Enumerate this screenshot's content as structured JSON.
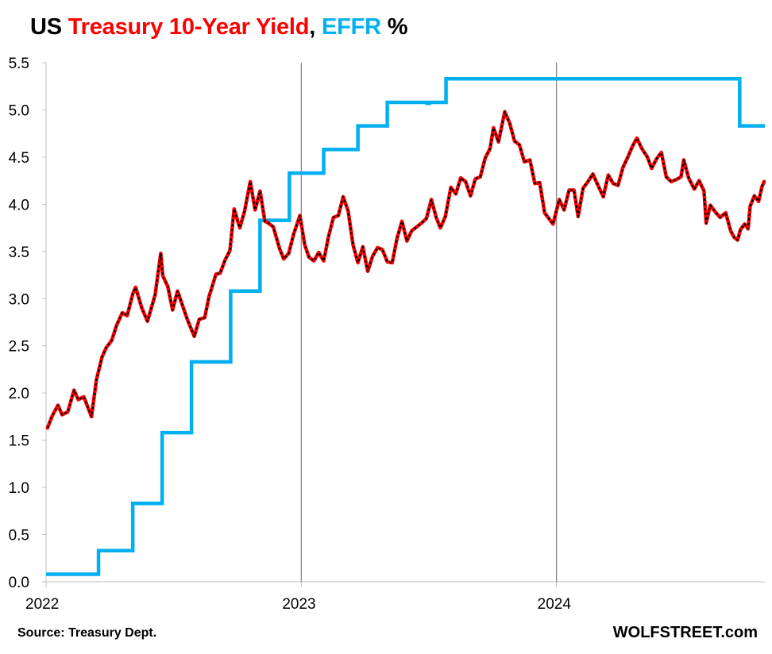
{
  "title": {
    "parts": [
      {
        "text": "US ",
        "color": "#000000"
      },
      {
        "text": "Treasury 10-Year Yield",
        "color": "#ff0000"
      },
      {
        "text": ", ",
        "color": "#000000"
      },
      {
        "text": "EFFR",
        "color": "#00b0f0"
      },
      {
        "text": " %",
        "color": "#000000"
      }
    ]
  },
  "source": "Source: Treasury Dept.",
  "brand": "WOLFSTREET.com",
  "chart_data": {
    "type": "line",
    "ylim": [
      0,
      5.5
    ],
    "yticks": [
      "0.0",
      "0.5",
      "1.0",
      "1.5",
      "2.0",
      "2.5",
      "3.0",
      "3.5",
      "4.0",
      "4.5",
      "5.0",
      "5.5"
    ],
    "xlim": [
      "2022-01-01",
      "2024-10-25"
    ],
    "xticks": [
      {
        "label": "2022",
        "date": "2022-01-01"
      },
      {
        "label": "2023",
        "date": "2023-01-01"
      },
      {
        "label": "2024",
        "date": "2024-01-01"
      }
    ],
    "vertical_lines": [
      "2023-01-01",
      "2024-01-01"
    ],
    "grid": false,
    "series": [
      {
        "name": "Treasury 10-Year Yield",
        "color": "#ff0000",
        "overlay_color": "#000000",
        "style": "line",
        "points": [
          [
            "2022-01-03",
            1.63
          ],
          [
            "2022-01-10",
            1.76
          ],
          [
            "2022-01-18",
            1.87
          ],
          [
            "2022-01-24",
            1.77
          ],
          [
            "2022-02-01",
            1.8
          ],
          [
            "2022-02-10",
            2.03
          ],
          [
            "2022-02-16",
            1.93
          ],
          [
            "2022-02-24",
            1.96
          ],
          [
            "2022-03-07",
            1.75
          ],
          [
            "2022-03-14",
            2.14
          ],
          [
            "2022-03-22",
            2.38
          ],
          [
            "2022-03-28",
            2.48
          ],
          [
            "2022-04-05",
            2.56
          ],
          [
            "2022-04-12",
            2.72
          ],
          [
            "2022-04-20",
            2.85
          ],
          [
            "2022-04-27",
            2.82
          ],
          [
            "2022-05-05",
            3.05
          ],
          [
            "2022-05-09",
            3.12
          ],
          [
            "2022-05-18",
            2.9
          ],
          [
            "2022-05-26",
            2.76
          ],
          [
            "2022-06-06",
            3.04
          ],
          [
            "2022-06-14",
            3.48
          ],
          [
            "2022-06-17",
            3.24
          ],
          [
            "2022-06-24",
            3.13
          ],
          [
            "2022-07-01",
            2.88
          ],
          [
            "2022-07-08",
            3.08
          ],
          [
            "2022-07-15",
            2.93
          ],
          [
            "2022-07-22",
            2.78
          ],
          [
            "2022-08-01",
            2.6
          ],
          [
            "2022-08-08",
            2.78
          ],
          [
            "2022-08-16",
            2.8
          ],
          [
            "2022-08-22",
            3.02
          ],
          [
            "2022-09-01",
            3.26
          ],
          [
            "2022-09-07",
            3.27
          ],
          [
            "2022-09-14",
            3.41
          ],
          [
            "2022-09-21",
            3.51
          ],
          [
            "2022-09-27",
            3.95
          ],
          [
            "2022-10-05",
            3.75
          ],
          [
            "2022-10-12",
            3.93
          ],
          [
            "2022-10-20",
            4.24
          ],
          [
            "2022-10-27",
            3.94
          ],
          [
            "2022-11-03",
            4.14
          ],
          [
            "2022-11-10",
            3.82
          ],
          [
            "2022-11-15",
            3.8
          ],
          [
            "2022-11-22",
            3.76
          ],
          [
            "2022-12-01",
            3.53
          ],
          [
            "2022-12-07",
            3.42
          ],
          [
            "2022-12-14",
            3.48
          ],
          [
            "2022-12-21",
            3.68
          ],
          [
            "2022-12-30",
            3.88
          ],
          [
            "2023-01-06",
            3.57
          ],
          [
            "2023-01-12",
            3.44
          ],
          [
            "2023-01-19",
            3.4
          ],
          [
            "2023-01-26",
            3.49
          ],
          [
            "2023-02-02",
            3.4
          ],
          [
            "2023-02-09",
            3.66
          ],
          [
            "2023-02-16",
            3.86
          ],
          [
            "2023-02-23",
            3.88
          ],
          [
            "2023-03-02",
            4.08
          ],
          [
            "2023-03-09",
            3.93
          ],
          [
            "2023-03-16",
            3.57
          ],
          [
            "2023-03-23",
            3.38
          ],
          [
            "2023-03-30",
            3.55
          ],
          [
            "2023-04-06",
            3.29
          ],
          [
            "2023-04-13",
            3.45
          ],
          [
            "2023-04-20",
            3.54
          ],
          [
            "2023-04-27",
            3.52
          ],
          [
            "2023-05-04",
            3.39
          ],
          [
            "2023-05-11",
            3.38
          ],
          [
            "2023-05-18",
            3.64
          ],
          [
            "2023-05-25",
            3.82
          ],
          [
            "2023-06-01",
            3.61
          ],
          [
            "2023-06-08",
            3.72
          ],
          [
            "2023-06-15",
            3.76
          ],
          [
            "2023-06-22",
            3.8
          ],
          [
            "2023-06-29",
            3.85
          ],
          [
            "2023-07-06",
            4.05
          ],
          [
            "2023-07-13",
            3.86
          ],
          [
            "2023-07-19",
            3.75
          ],
          [
            "2023-07-26",
            3.87
          ],
          [
            "2023-08-03",
            4.18
          ],
          [
            "2023-08-10",
            4.11
          ],
          [
            "2023-08-17",
            4.28
          ],
          [
            "2023-08-24",
            4.24
          ],
          [
            "2023-08-31",
            4.09
          ],
          [
            "2023-09-07",
            4.27
          ],
          [
            "2023-09-14",
            4.29
          ],
          [
            "2023-09-21",
            4.49
          ],
          [
            "2023-09-28",
            4.59
          ],
          [
            "2023-10-03",
            4.81
          ],
          [
            "2023-10-10",
            4.66
          ],
          [
            "2023-10-19",
            4.98
          ],
          [
            "2023-10-26",
            4.86
          ],
          [
            "2023-11-02",
            4.67
          ],
          [
            "2023-11-09",
            4.63
          ],
          [
            "2023-11-16",
            4.45
          ],
          [
            "2023-11-24",
            4.47
          ],
          [
            "2023-12-01",
            4.22
          ],
          [
            "2023-12-08",
            4.23
          ],
          [
            "2023-12-15",
            3.91
          ],
          [
            "2023-12-27",
            3.79
          ],
          [
            "2024-01-05",
            4.05
          ],
          [
            "2024-01-12",
            3.94
          ],
          [
            "2024-01-19",
            4.15
          ],
          [
            "2024-01-26",
            4.15
          ],
          [
            "2024-02-01",
            3.87
          ],
          [
            "2024-02-08",
            4.17
          ],
          [
            "2024-02-15",
            4.24
          ],
          [
            "2024-02-22",
            4.32
          ],
          [
            "2024-03-01",
            4.19
          ],
          [
            "2024-03-08",
            4.08
          ],
          [
            "2024-03-15",
            4.31
          ],
          [
            "2024-03-22",
            4.22
          ],
          [
            "2024-03-29",
            4.2
          ],
          [
            "2024-04-05",
            4.39
          ],
          [
            "2024-04-12",
            4.5
          ],
          [
            "2024-04-19",
            4.62
          ],
          [
            "2024-04-25",
            4.7
          ],
          [
            "2024-05-02",
            4.59
          ],
          [
            "2024-05-10",
            4.5
          ],
          [
            "2024-05-16",
            4.38
          ],
          [
            "2024-05-23",
            4.48
          ],
          [
            "2024-05-30",
            4.55
          ],
          [
            "2024-06-06",
            4.29
          ],
          [
            "2024-06-13",
            4.24
          ],
          [
            "2024-06-20",
            4.26
          ],
          [
            "2024-06-27",
            4.29
          ],
          [
            "2024-07-01",
            4.47
          ],
          [
            "2024-07-08",
            4.28
          ],
          [
            "2024-07-16",
            4.16
          ],
          [
            "2024-07-23",
            4.25
          ],
          [
            "2024-07-30",
            4.14
          ],
          [
            "2024-08-02",
            3.8
          ],
          [
            "2024-08-08",
            3.99
          ],
          [
            "2024-08-15",
            3.92
          ],
          [
            "2024-08-22",
            3.86
          ],
          [
            "2024-08-30",
            3.91
          ],
          [
            "2024-09-06",
            3.72
          ],
          [
            "2024-09-11",
            3.65
          ],
          [
            "2024-09-16",
            3.62
          ],
          [
            "2024-09-20",
            3.73
          ],
          [
            "2024-09-26",
            3.79
          ],
          [
            "2024-10-01",
            3.74
          ],
          [
            "2024-10-04",
            3.98
          ],
          [
            "2024-10-10",
            4.09
          ],
          [
            "2024-10-16",
            4.03
          ],
          [
            "2024-10-21",
            4.19
          ],
          [
            "2024-10-24",
            4.24
          ]
        ]
      },
      {
        "name": "EFFR",
        "color": "#00b0f0",
        "style": "step",
        "points": [
          [
            "2022-01-01",
            0.08
          ],
          [
            "2022-03-17",
            0.33
          ],
          [
            "2022-05-05",
            0.83
          ],
          [
            "2022-06-16",
            1.58
          ],
          [
            "2022-07-28",
            2.33
          ],
          [
            "2022-09-22",
            3.08
          ],
          [
            "2022-11-03",
            3.83
          ],
          [
            "2022-12-15",
            4.33
          ],
          [
            "2023-02-02",
            4.58
          ],
          [
            "2023-03-23",
            4.83
          ],
          [
            "2023-05-04",
            5.08
          ],
          [
            "2023-06-30",
            5.07
          ],
          [
            "2023-07-03",
            5.08
          ],
          [
            "2023-07-27",
            5.33
          ],
          [
            "2024-09-19",
            4.83
          ],
          [
            "2024-10-25",
            4.83
          ]
        ]
      }
    ]
  }
}
